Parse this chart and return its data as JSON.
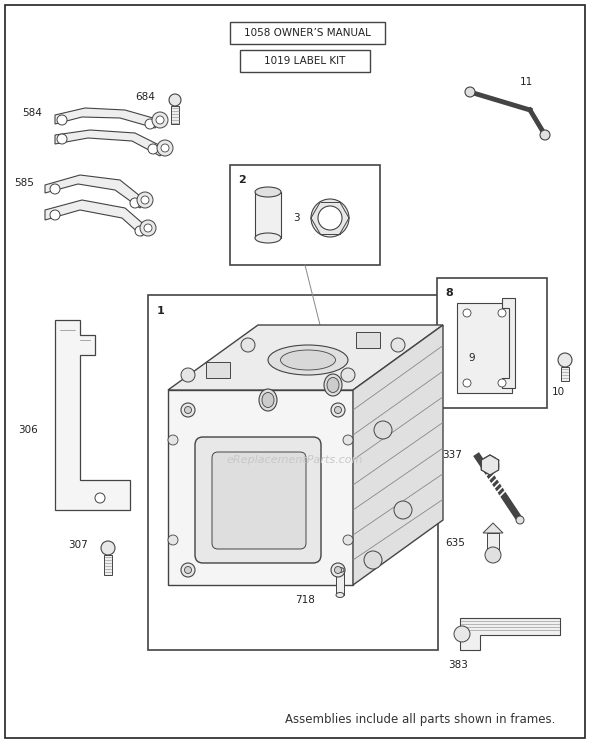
{
  "bg": "#ffffff",
  "gray": "#444444",
  "lgray": "#888888",
  "vlight": "#dddddd",
  "watermark": "eReplacementParts.com",
  "footer": "Assemblies include all parts shown in frames.",
  "figw": 5.9,
  "figh": 7.43,
  "dpi": 100
}
